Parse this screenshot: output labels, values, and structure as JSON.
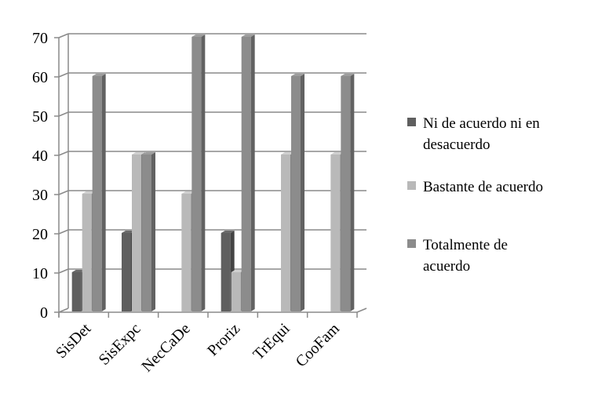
{
  "chart_data": {
    "type": "bar",
    "categories": [
      "SisDet",
      "SisExpc",
      "NecCaDe",
      "Proriz",
      "TrEqui",
      "CooFam"
    ],
    "series": [
      {
        "name": "Ni de acuerdo ni en desacuerdo",
        "values": [
          10,
          20,
          0,
          20,
          0,
          0
        ],
        "color": "#5f5f5f"
      },
      {
        "name": "Bastante de acuerdo",
        "values": [
          30,
          40,
          30,
          10,
          40,
          40
        ],
        "color": "#b9b9b9"
      },
      {
        "name": "Totalmente de acuerdo",
        "values": [
          60,
          40,
          70,
          70,
          60,
          60
        ],
        "color": "#8c8c8c"
      }
    ],
    "ylim": [
      0,
      70
    ],
    "yticks": [
      0,
      10,
      20,
      30,
      40,
      50,
      60,
      70
    ],
    "grid": true,
    "legend_position": "right",
    "style": "3d-clustered-column"
  }
}
